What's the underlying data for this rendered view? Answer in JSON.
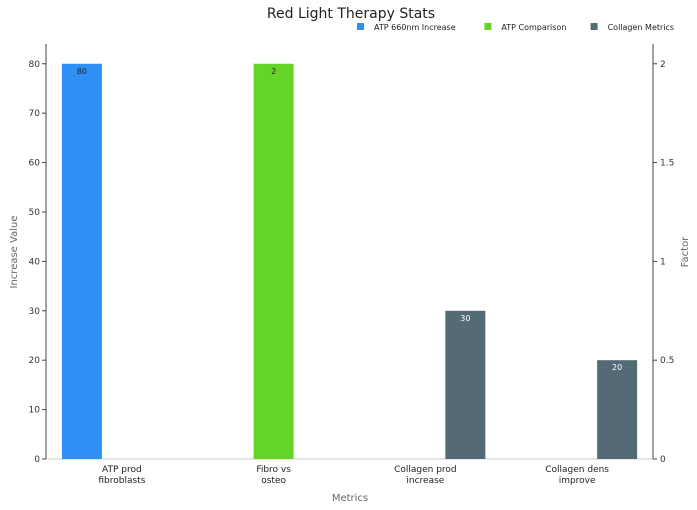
{
  "chart_data": {
    "type": "bar",
    "title": "Red Light Therapy Stats",
    "xlabel": "Metrics",
    "ylabel": "Increase Value",
    "y2label": "Factor",
    "ylim": [
      0,
      84
    ],
    "y2lim": [
      0,
      2.1
    ],
    "yticks": [
      "0",
      "10",
      "20",
      "30",
      "40",
      "50",
      "60",
      "70",
      "80"
    ],
    "y2ticks": [
      "0",
      "0.5",
      "1",
      "1.5",
      "2"
    ],
    "legend_position": "top-right",
    "grid": false,
    "categories": [
      [
        "ATP prod",
        "fibroblasts"
      ],
      [
        "Fibro vs",
        "osteo"
      ],
      [
        "Collagen prod",
        "increase"
      ],
      [
        "Collagen dens",
        "improve"
      ]
    ],
    "series": [
      {
        "name": "ATP 660nm Increase",
        "color": "#2e8ff5",
        "axis": "left",
        "values": [
          80,
          null,
          null,
          null
        ],
        "labels": [
          "80",
          "",
          "",
          ""
        ]
      },
      {
        "name": "ATP Comparison",
        "color": "#64d426",
        "axis": "right",
        "values": [
          null,
          2,
          null,
          null
        ],
        "labels": [
          "",
          "2",
          "",
          ""
        ]
      },
      {
        "name": "Collagen Metrics",
        "color": "#546a75",
        "axis": "left",
        "values": [
          null,
          null,
          30,
          20
        ],
        "labels": [
          "",
          "",
          "30",
          "20"
        ]
      }
    ]
  }
}
